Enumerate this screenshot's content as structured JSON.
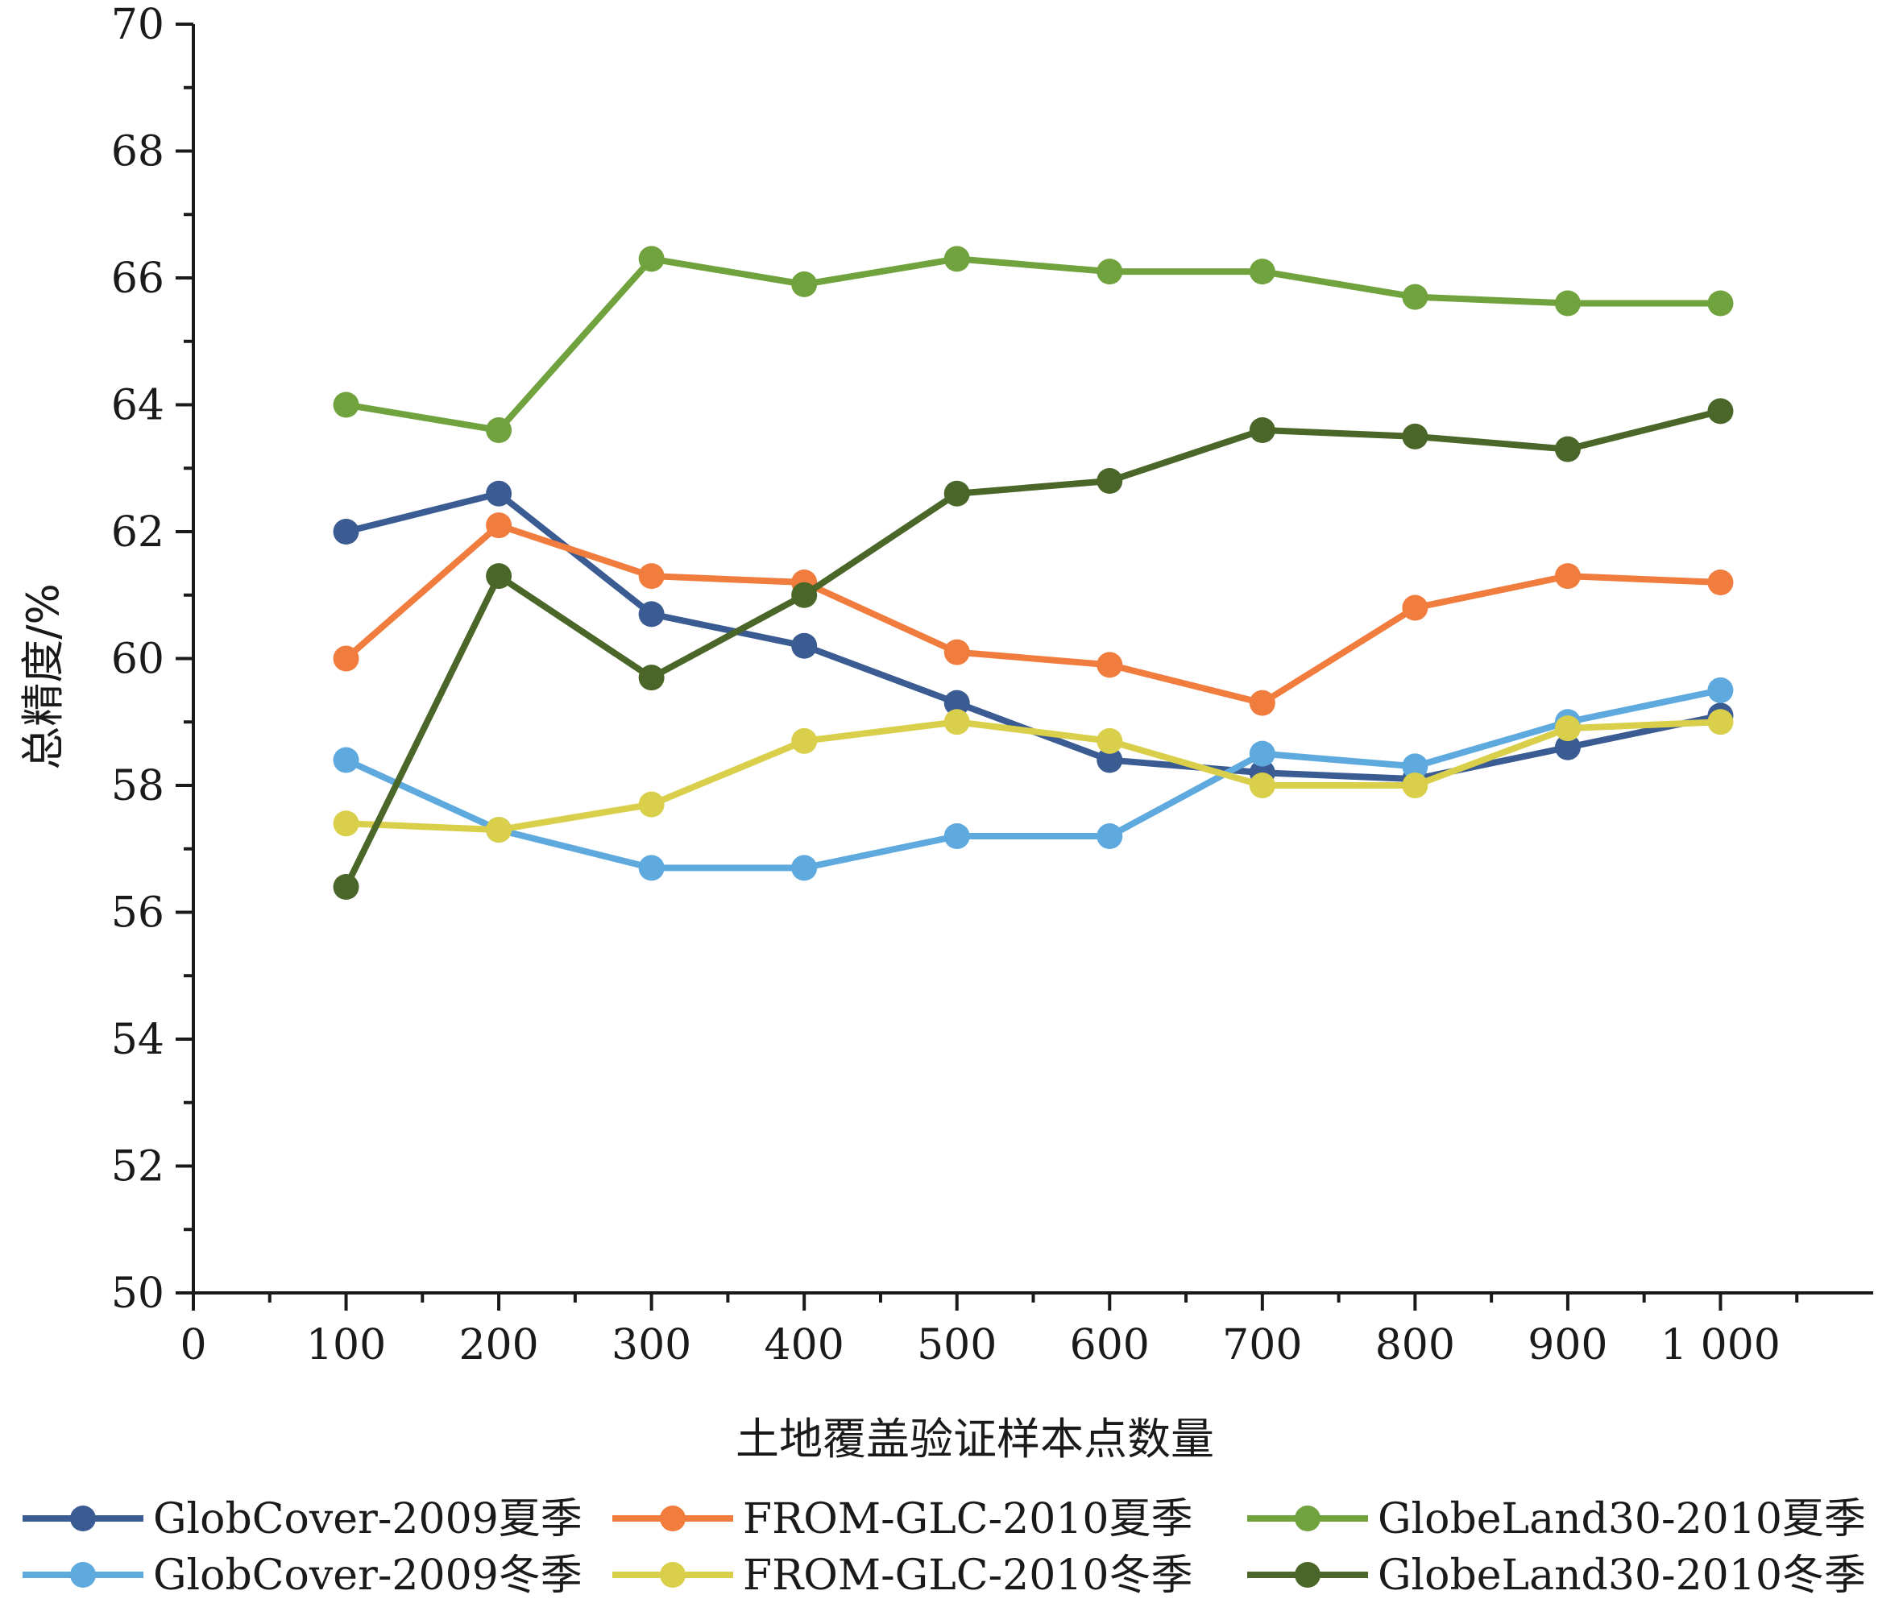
{
  "chart_data": {
    "type": "line",
    "xlabel": "土地覆盖验证样本点数量",
    "ylabel": "总精度/%",
    "xlim": [
      0,
      1100
    ],
    "ylim": [
      50,
      70
    ],
    "x_ticks": [
      0,
      100,
      200,
      300,
      400,
      500,
      600,
      700,
      800,
      900,
      1000
    ],
    "x_tick_labels": [
      "0",
      "100",
      "200",
      "300",
      "400",
      "500",
      "600",
      "700",
      "800",
      "900",
      "1 000"
    ],
    "y_ticks": [
      50,
      52,
      54,
      56,
      58,
      60,
      62,
      64,
      66,
      68,
      70
    ],
    "y_tick_labels": [
      "50",
      "52",
      "54",
      "56",
      "58",
      "60",
      "62",
      "64",
      "66",
      "68",
      "70"
    ],
    "x": [
      100,
      200,
      300,
      400,
      500,
      600,
      700,
      800,
      900,
      1000
    ],
    "grid": false,
    "legend_position": "bottom",
    "series": [
      {
        "name": "GlobCover-2009夏季",
        "color": "#3b5b93",
        "values": [
          62.0,
          62.6,
          60.7,
          60.2,
          59.3,
          58.4,
          58.2,
          58.1,
          58.6,
          59.1
        ]
      },
      {
        "name": "FROM-GLC-2010夏季",
        "color": "#f07c3e",
        "values": [
          60.0,
          62.1,
          61.3,
          61.2,
          60.1,
          59.9,
          59.3,
          60.8,
          61.3,
          61.2
        ]
      },
      {
        "name": "GlobeLand30-2010夏季",
        "color": "#70a23e",
        "values": [
          64.0,
          63.6,
          66.3,
          65.9,
          66.3,
          66.1,
          66.1,
          65.7,
          65.6,
          65.6
        ]
      },
      {
        "name": "GlobCover-2009冬季",
        "color": "#5ea9dd",
        "values": [
          58.4,
          57.3,
          56.7,
          56.7,
          57.2,
          57.2,
          58.5,
          58.3,
          59.0,
          59.5
        ]
      },
      {
        "name": "FROM-GLC-2010冬季",
        "color": "#d9cf4a",
        "values": [
          57.4,
          57.3,
          57.7,
          58.7,
          59.0,
          58.7,
          58.0,
          58.0,
          58.9,
          59.0
        ]
      },
      {
        "name": "GlobeLand30-2010冬季",
        "color": "#4a6628",
        "values": [
          56.4,
          61.3,
          59.7,
          61.0,
          62.6,
          62.8,
          63.6,
          63.5,
          63.3,
          63.9
        ]
      }
    ]
  }
}
